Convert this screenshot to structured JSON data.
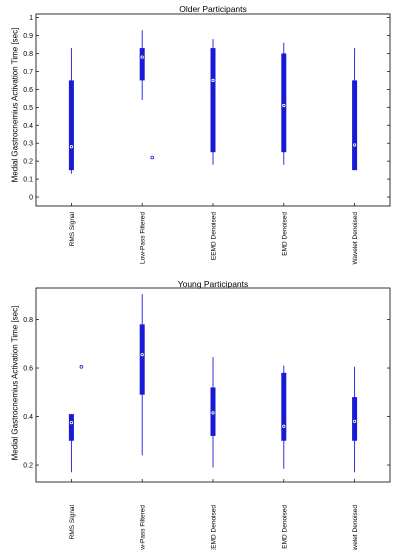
{
  "chart_data": [
    {
      "type": "box",
      "title": "Older Participants",
      "ylabel": "Medial Gastrocnemius Activation Time [sec]",
      "ylim": [
        -0.05,
        1.02
      ],
      "yticks": [
        0,
        0.1,
        0.2,
        0.3,
        0.4,
        0.5,
        0.6,
        0.7,
        0.8,
        0.9,
        1
      ],
      "ytick_labels": [
        "0",
        "0.1",
        "0.2",
        "0.3",
        "0.4",
        "0.5",
        "0.6",
        "0.7",
        "0.8",
        "0.9",
        "1"
      ],
      "categories": [
        "RMS Signal",
        "Low-Pass Filtered",
        "EEMD Denoised",
        "EMD Denoised",
        "Wavelet Denoised"
      ],
      "boxes": [
        {
          "whisker_low": 0.13,
          "q1": 0.15,
          "median": 0.28,
          "q3": 0.65,
          "whisker_high": 0.83,
          "outliers": []
        },
        {
          "whisker_low": 0.54,
          "q1": 0.65,
          "median": 0.78,
          "q3": 0.83,
          "whisker_high": 0.93,
          "outliers": [
            0.22
          ]
        },
        {
          "whisker_low": 0.18,
          "q1": 0.25,
          "median": 0.65,
          "q3": 0.83,
          "whisker_high": 0.88,
          "outliers": []
        },
        {
          "whisker_low": 0.18,
          "q1": 0.25,
          "median": 0.51,
          "q3": 0.8,
          "whisker_high": 0.86,
          "outliers": []
        },
        {
          "whisker_low": 0.15,
          "q1": 0.15,
          "median": 0.29,
          "q3": 0.65,
          "whisker_high": 0.83,
          "outliers": []
        }
      ]
    },
    {
      "type": "box",
      "title": "Young Participants",
      "ylabel": "Medial Gastrocnemius Activation Time [sec]",
      "ylim": [
        0.13,
        0.93
      ],
      "yticks": [
        0.2,
        0.4,
        0.6,
        0.8
      ],
      "ytick_labels": [
        "0.2",
        "0.4",
        "0.6",
        "0.8"
      ],
      "categories": [
        "RMS Signal",
        "Low-Pass Filtered",
        "EEMD Denoised",
        "EMD Denoised",
        "Wavelet Denoised"
      ],
      "boxes": [
        {
          "whisker_low": 0.17,
          "q1": 0.3,
          "median": 0.375,
          "q3": 0.41,
          "whisker_high": 0.41,
          "outliers": [
            0.605
          ]
        },
        {
          "whisker_low": 0.24,
          "q1": 0.49,
          "median": 0.655,
          "q3": 0.78,
          "whisker_high": 0.905,
          "outliers": []
        },
        {
          "whisker_low": 0.19,
          "q1": 0.32,
          "median": 0.415,
          "q3": 0.52,
          "whisker_high": 0.645,
          "outliers": []
        },
        {
          "whisker_low": 0.185,
          "q1": 0.3,
          "median": 0.36,
          "q3": 0.58,
          "whisker_high": 0.61,
          "outliers": []
        },
        {
          "whisker_low": 0.17,
          "q1": 0.3,
          "median": 0.38,
          "q3": 0.48,
          "whisker_high": 0.605,
          "outliers": []
        }
      ]
    }
  ]
}
